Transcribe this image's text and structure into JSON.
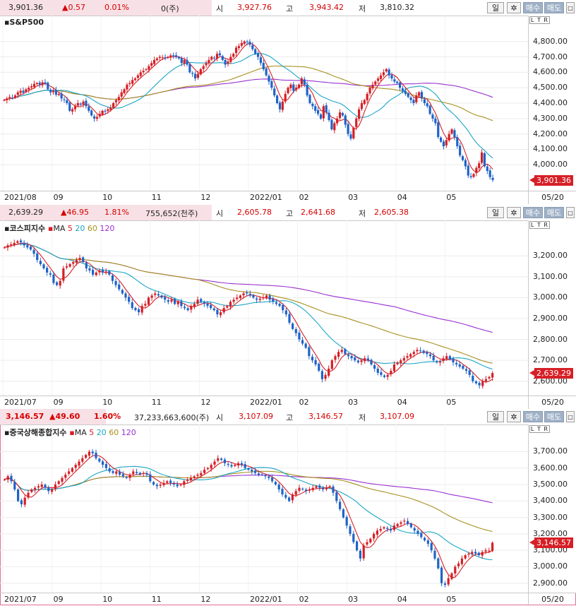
{
  "colors": {
    "up": "#d61f26",
    "down": "#1f63c8",
    "ma5": "#d61f26",
    "ma20": "#1ba6c7",
    "ma60": "#a8901e",
    "ma120": "#9a30d0",
    "last_bg": "#d61f26",
    "quote_bg": "#f8e1e6"
  },
  "controls": {
    "period": "일",
    "gear_icon": "gear-icon",
    "buy": "매수",
    "sell": "매도",
    "ltr": "L T R",
    "date": "05/20"
  },
  "ma_legend": {
    "label": "MA",
    "p5": "5",
    "p20": "20",
    "p60": "60",
    "p120": "120"
  },
  "panels": [
    {
      "quote": {
        "price": "3,901.36",
        "change": "▲0.57",
        "pct": "0.01%",
        "volume": "0(주)",
        "open_label": "시",
        "open": "3,927.76",
        "high_label": "고",
        "high": "3,943.42",
        "low_label": "저",
        "low": "3,810.32"
      },
      "name": "S&P500",
      "show_ma": false,
      "last_label": "3,901.36",
      "chart_data": {
        "type": "candlestick",
        "title": "S&P500",
        "y_ticks": [
          "4,800.00",
          "4,700.00",
          "4,600.00",
          "4,500.00",
          "4,400.00",
          "4,300.00",
          "4,200.00",
          "4,100.00",
          "4,000.00"
        ],
        "ylim": [
          3850,
          4840
        ],
        "x_labels": [
          "2021/08",
          "09",
          "10",
          "11",
          "12",
          "2022/01",
          "02",
          "03",
          "04",
          "05"
        ],
        "last_close": 3901.36,
        "close": [
          4420,
          4430,
          4440,
          4435,
          4450,
          4470,
          4480,
          4468,
          4490,
          4500,
          4510,
          4525,
          4530,
          4520,
          4535,
          4528,
          4490,
          4470,
          4480,
          4455,
          4460,
          4430,
          4420,
          4400,
          4350,
          4360,
          4380,
          4400,
          4390,
          4410,
          4380,
          4350,
          4320,
          4300,
          4310,
          4330,
          4350,
          4345,
          4360,
          4370,
          4400,
          4420,
          4440,
          4470,
          4490,
          4520,
          4530,
          4550,
          4560,
          4580,
          4600,
          4610,
          4620,
          4640,
          4660,
          4680,
          4690,
          4700,
          4697,
          4690,
          4700,
          4710,
          4705,
          4700,
          4690,
          4660,
          4680,
          4650,
          4600,
          4590,
          4560,
          4590,
          4620,
          4640,
          4660,
          4680,
          4700,
          4690,
          4720,
          4710,
          4680,
          4650,
          4670,
          4700,
          4720,
          4760,
          4770,
          4790,
          4800,
          4795,
          4780,
          4750,
          4720,
          4700,
          4660,
          4620,
          4580,
          4540,
          4500,
          4450,
          4400,
          4360,
          4410,
          4460,
          4500,
          4520,
          4480,
          4500,
          4520,
          4560,
          4520,
          4450,
          4400,
          4380,
          4350,
          4330,
          4300,
          4380,
          4340,
          4290,
          4230,
          4270,
          4300,
          4340,
          4320,
          4260,
          4200,
          4170,
          4240,
          4300,
          4360,
          4400,
          4420,
          4460,
          4500,
          4520,
          4540,
          4560,
          4580,
          4600,
          4620,
          4580,
          4560,
          4540,
          4530,
          4500,
          4480,
          4460,
          4440,
          4420,
          4400,
          4450,
          4470,
          4430,
          4400,
          4380,
          4330,
          4300,
          4270,
          4180,
          4150,
          4120,
          4160,
          4200,
          4230,
          4180,
          4120,
          4060,
          4030,
          3990,
          3930,
          3920,
          3940,
          3980,
          4010,
          4080,
          3990,
          3960,
          3920,
          3901
        ]
      }
    },
    {
      "quote": {
        "price": "2,639.29",
        "change": "▲46.95",
        "pct": "1.81%",
        "volume": "755,652(천주)",
        "open_label": "시",
        "open": "2,605.78",
        "high_label": "고",
        "high": "2,641.68",
        "low_label": "저",
        "low": "2,605.38"
      },
      "name": "코스피지수",
      "show_ma": true,
      "last_label": "2,639.29",
      "chart_data": {
        "type": "candlestick",
        "title": "코스피지수",
        "y_ticks": [
          "3,200.00",
          "3,100.00",
          "3,000.00",
          "2,900.00",
          "2,800.00",
          "2,700.00",
          "2,600.00"
        ],
        "ylim": [
          2545,
          3275
        ],
        "x_labels": [
          "2021/07",
          "09",
          "10",
          "11",
          "12",
          "2022/01",
          "02",
          "03",
          "04",
          "05"
        ],
        "last_close": 2639.29,
        "close": [
          3240,
          3250,
          3255,
          3262,
          3270,
          3265,
          3250,
          3240,
          3230,
          3210,
          3180,
          3160,
          3140,
          3120,
          3110,
          3070,
          3060,
          3080,
          3140,
          3150,
          3160,
          3170,
          3180,
          3190,
          3170,
          3140,
          3130,
          3110,
          3120,
          3130,
          3120,
          3125,
          3110,
          3080,
          3060,
          3040,
          3020,
          3000,
          2980,
          2950,
          2940,
          2930,
          2960,
          2970,
          3000,
          3010,
          3020,
          3010,
          3000,
          2990,
          2980,
          2990,
          2970,
          2980,
          2960,
          2950,
          2940,
          2960,
          2970,
          2990,
          2980,
          2970,
          2960,
          2950,
          2940,
          2920,
          2930,
          2950,
          2960,
          2980,
          2990,
          3000,
          3010,
          3020,
          3020,
          3010,
          3000,
          2990,
          2995,
          3000,
          3010,
          2990,
          2980,
          2970,
          2960,
          2940,
          2920,
          2880,
          2850,
          2830,
          2800,
          2780,
          2760,
          2720,
          2700,
          2680,
          2650,
          2610,
          2630,
          2660,
          2700,
          2720,
          2740,
          2750,
          2730,
          2720,
          2710,
          2700,
          2690,
          2700,
          2710,
          2700,
          2680,
          2660,
          2640,
          2630,
          2620,
          2630,
          2650,
          2680,
          2690,
          2700,
          2710,
          2720,
          2730,
          2740,
          2750,
          2745,
          2735,
          2730,
          2720,
          2700,
          2690,
          2695,
          2710,
          2720,
          2705,
          2690,
          2680,
          2670,
          2660,
          2650,
          2630,
          2600,
          2590,
          2580,
          2600,
          2610,
          2620,
          2639
        ]
      }
    },
    {
      "quote": {
        "price": "3,146.57",
        "change": "▲49.60",
        "pct": "1.60%",
        "volume": "37,233,663,600(주)",
        "open_label": "시",
        "open": "3,107.09",
        "high_label": "고",
        "high": "3,146.57",
        "low_label": "저",
        "low": "3,107.09"
      },
      "name": "중국상해종합지수",
      "show_ma": true,
      "last_label": "3,146.57",
      "chart_data": {
        "type": "candlestick",
        "title": "중국상해종합지수",
        "y_ticks": [
          "3,700.00",
          "3,600.00",
          "3,500.00",
          "3,400.00",
          "3,300.00",
          "3,200.00",
          "3,100.00",
          "3,000.00",
          "2,900.00"
        ],
        "ylim": [
          2860,
          3745
        ],
        "x_labels": [
          "2021/07",
          "09",
          "10",
          "11",
          "12",
          "2022/01",
          "02",
          "03",
          "04",
          "05"
        ],
        "last_close": 3146.57,
        "close": [
          3530,
          3550,
          3520,
          3470,
          3400,
          3380,
          3420,
          3450,
          3470,
          3480,
          3490,
          3500,
          3480,
          3460,
          3470,
          3500,
          3520,
          3540,
          3560,
          3580,
          3600,
          3620,
          3640,
          3660,
          3680,
          3700,
          3690,
          3660,
          3640,
          3620,
          3600,
          3580,
          3570,
          3580,
          3560,
          3550,
          3540,
          3560,
          3580,
          3570,
          3560,
          3570,
          3560,
          3520,
          3500,
          3490,
          3500,
          3510,
          3520,
          3510,
          3500,
          3490,
          3500,
          3520,
          3530,
          3540,
          3550,
          3560,
          3570,
          3590,
          3600,
          3620,
          3640,
          3660,
          3650,
          3630,
          3620,
          3610,
          3620,
          3630,
          3620,
          3600,
          3590,
          3580,
          3570,
          3560,
          3560,
          3550,
          3540,
          3520,
          3500,
          3470,
          3440,
          3420,
          3400,
          3440,
          3460,
          3480,
          3470,
          3460,
          3470,
          3480,
          3490,
          3480,
          3470,
          3480,
          3490,
          3450,
          3400,
          3350,
          3300,
          3250,
          3200,
          3150,
          3100,
          3050,
          3130,
          3150,
          3170,
          3200,
          3220,
          3230,
          3240,
          3230,
          3220,
          3250,
          3260,
          3270,
          3280,
          3260,
          3240,
          3220,
          3200,
          3180,
          3160,
          3140,
          3100,
          3050,
          2990,
          2900,
          2890,
          2930,
          2960,
          3000,
          3020,
          3050,
          3070,
          3080,
          3090,
          3080,
          3070,
          3090,
          3100,
          3097,
          3146
        ]
      }
    }
  ]
}
